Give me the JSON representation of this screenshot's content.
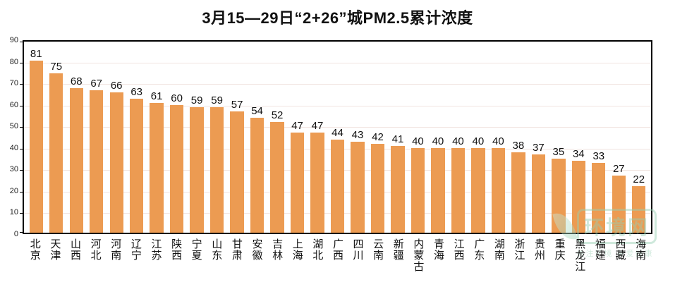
{
  "chart_data": {
    "type": "bar",
    "title": "3月15—29日“2+26”城PM2.5累计浓度",
    "categories": [
      "北京",
      "天津",
      "山西",
      "河北",
      "河南",
      "辽宁",
      "江苏",
      "陕西",
      "宁夏",
      "山东",
      "甘肃",
      "安徽",
      "吉林",
      "上海",
      "湖北",
      "广西",
      "四川",
      "云南",
      "新疆",
      "内蒙古",
      "青海",
      "江西",
      "广东",
      "湖南",
      "浙江",
      "贵州",
      "重庆",
      "黑龙江",
      "福建",
      "西藏",
      "海南"
    ],
    "values": [
      81,
      75,
      68,
      67,
      66,
      63,
      61,
      60,
      59,
      59,
      57,
      54,
      52,
      47,
      47,
      44,
      43,
      42,
      41,
      40,
      40,
      40,
      40,
      40,
      38,
      37,
      35,
      34,
      33,
      27,
      22
    ],
    "xlabel": "",
    "ylabel": "",
    "ylim": [
      0,
      90
    ],
    "yticks": [
      0,
      10,
      20,
      30,
      40,
      50,
      60,
      70,
      80,
      90
    ],
    "grid": true,
    "legend": "none",
    "data_labels": true,
    "bar_color": "#EC9B52",
    "gridline_color": "#f1e4e0",
    "border_color": "#000000"
  },
  "watermark": {
    "logo_text": "环境网",
    "tagline": "关注环境 关爱健康",
    "color": "#96cfb2"
  }
}
